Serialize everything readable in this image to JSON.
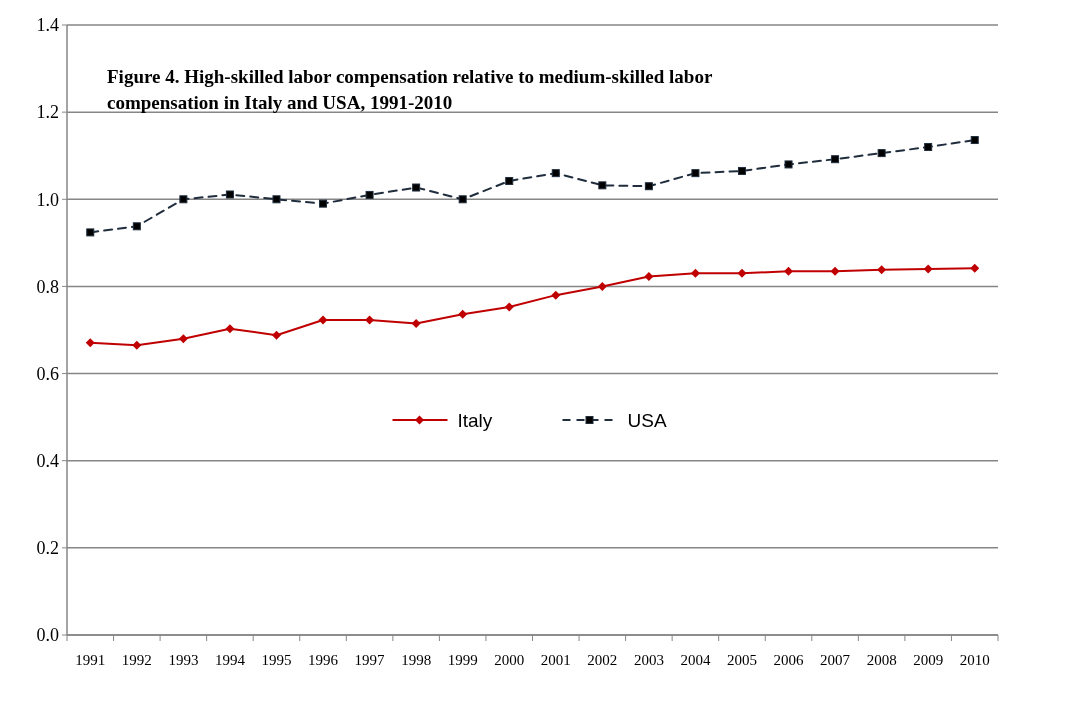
{
  "chart_data": {
    "type": "line",
    "title": "Figure 4. High-skilled labor compensation relative to medium-skilled labor compensation in Italy and USA, 1991-2010",
    "categories": [
      "1991",
      "1992",
      "1993",
      "1994",
      "1995",
      "1996",
      "1997",
      "1998",
      "1999",
      "2000",
      "2001",
      "2002",
      "2003",
      "2004",
      "2005",
      "2006",
      "2007",
      "2008",
      "2009",
      "2010"
    ],
    "series": [
      {
        "name": "Italy",
        "color": "#c00000",
        "marker": "diamond",
        "line_style": "solid",
        "values": [
          0.671,
          0.665,
          0.68,
          0.703,
          0.688,
          0.723,
          0.723,
          0.715,
          0.736,
          0.753,
          0.78,
          0.8,
          0.823,
          0.83,
          0.83,
          0.835,
          0.835,
          0.838,
          0.84,
          0.842
        ]
      },
      {
        "name": "USA",
        "color": "#1f2d3d",
        "marker": "square",
        "line_style": "dashed",
        "values": [
          0.924,
          0.938,
          1.0,
          1.011,
          1.0,
          0.99,
          1.01,
          1.027,
          1.0,
          1.042,
          1.06,
          1.032,
          1.03,
          1.06,
          1.065,
          1.08,
          1.092,
          1.106,
          1.12,
          1.136
        ]
      }
    ],
    "ylim": [
      0,
      1.4
    ],
    "yticks": [
      {
        "value": 0,
        "label": "0.0"
      },
      0.2,
      0.4,
      0.6,
      0.8,
      {
        "value": 1,
        "label": "1.0"
      },
      1.2,
      1.4
    ],
    "grid": "y",
    "legend": "center"
  }
}
